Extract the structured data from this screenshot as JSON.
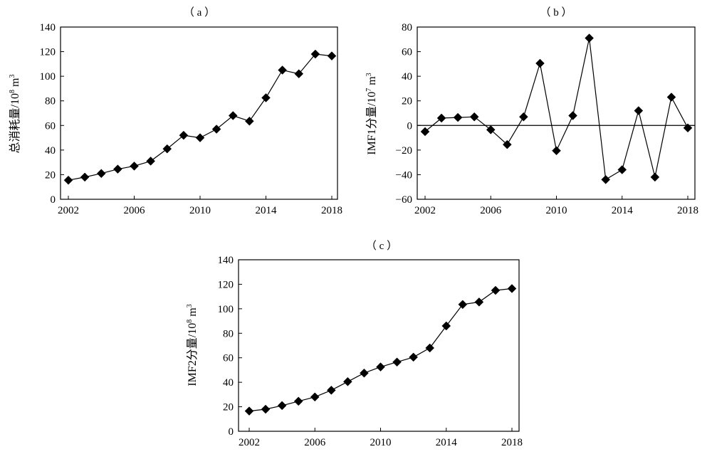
{
  "chart_data": [
    {
      "id": "a",
      "type": "line",
      "panel_label": "（ a ）",
      "ylabel": {
        "prefix": "总消耗量/10",
        "sup": "8",
        "suffix": " m",
        "sup2": "3"
      },
      "xlim": [
        2002,
        2018
      ],
      "ylim": [
        0,
        140
      ],
      "yticks": [
        0,
        20,
        40,
        60,
        80,
        100,
        120,
        140
      ],
      "xticks": [
        2002,
        2006,
        2010,
        2014,
        2018
      ],
      "marker": "diamond",
      "x": [
        2002,
        2003,
        2004,
        2005,
        2006,
        2007,
        2008,
        2009,
        2010,
        2011,
        2012,
        2013,
        2014,
        2015,
        2016,
        2017,
        2018
      ],
      "values": [
        15.5,
        18,
        21,
        24.5,
        27,
        31,
        41,
        52,
        50,
        57,
        68,
        63.5,
        82.5,
        105,
        102,
        118,
        116.5
      ]
    },
    {
      "id": "b",
      "type": "line",
      "panel_label": "（ b ）",
      "ylabel": {
        "prefix": "IMF1分量/10",
        "sup": "7",
        "suffix": " m",
        "sup2": "3"
      },
      "xlim": [
        2002,
        2018
      ],
      "ylim": [
        -60,
        80
      ],
      "yticks": [
        -60,
        -40,
        -20,
        0,
        20,
        40,
        60,
        80
      ],
      "xticks": [
        2002,
        2006,
        2010,
        2014,
        2018
      ],
      "zero_line": true,
      "marker": "diamond",
      "x": [
        2002,
        2003,
        2004,
        2005,
        2006,
        2007,
        2008,
        2009,
        2010,
        2011,
        2012,
        2013,
        2014,
        2015,
        2016,
        2017,
        2018
      ],
      "values": [
        -5,
        6,
        6.5,
        7,
        -3.5,
        -15.5,
        7,
        50.5,
        -20.5,
        8,
        71,
        -44,
        -36,
        12,
        -42,
        23,
        -2
      ]
    },
    {
      "id": "c",
      "type": "line",
      "panel_label": "（ c ）",
      "ylabel": {
        "prefix": "IMF2分量/10",
        "sup": "8",
        "suffix": " m",
        "sup2": "3"
      },
      "xlim": [
        2002,
        2018
      ],
      "ylim": [
        0,
        140
      ],
      "yticks": [
        0,
        20,
        40,
        60,
        80,
        100,
        120,
        140
      ],
      "xticks": [
        2002,
        2006,
        2010,
        2014,
        2018
      ],
      "marker": "diamond",
      "x": [
        2002,
        2003,
        2004,
        2005,
        2006,
        2007,
        2008,
        2009,
        2010,
        2011,
        2012,
        2013,
        2014,
        2015,
        2016,
        2017,
        2018
      ],
      "values": [
        16.5,
        18,
        21,
        24.5,
        28,
        33.5,
        40.5,
        47.5,
        52.5,
        56.5,
        60.5,
        68,
        86,
        103.5,
        105.5,
        115,
        116.5
      ]
    }
  ]
}
